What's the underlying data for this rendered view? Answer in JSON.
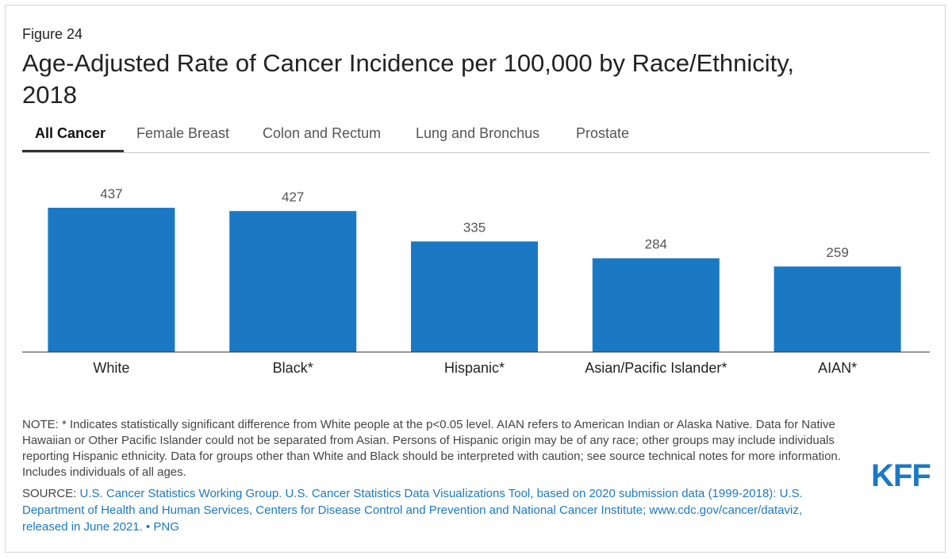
{
  "figure_label": "Figure 24",
  "title": "Age-Adjusted Rate of Cancer Incidence per 100,000 by Race/Ethnicity, 2018",
  "tabs": [
    {
      "label": "All Cancer",
      "active": true
    },
    {
      "label": "Female Breast",
      "active": false
    },
    {
      "label": "Colon and Rectum",
      "active": false
    },
    {
      "label": "Lung and Bronchus",
      "active": false
    },
    {
      "label": "Prostate",
      "active": false
    }
  ],
  "chart_data": {
    "type": "bar",
    "categories": [
      "White",
      "Black*",
      "Hispanic*",
      "Asian/Pacific Islander*",
      "AIAN*"
    ],
    "values": [
      437,
      427,
      335,
      284,
      259
    ],
    "bar_color": "#1b79c4",
    "data_labels": true,
    "grid": false,
    "ylim": [
      0,
      437
    ]
  },
  "note": "NOTE: * Indicates statistically significant difference from White people at the p<0.05 level. AIAN refers to American Indian or Alaska Native. Data for Native Hawaiian or Other Pacific Islander could not be separated from Asian. Persons of Hispanic origin may be of any race; other groups may include individuals reporting Hispanic ethnicity. Data for groups other than White and Black should be interpreted with caution; see source technical notes for more information. Includes individuals of all ages.",
  "source": {
    "prefix": "SOURCE: ",
    "text": "U.S. Cancer Statistics Working Group. U.S. Cancer Statistics Data Visualizations Tool, based on 2020 submission data (1999-2018): U.S. Department of Health and Human Services, Centers for Disease Control and Prevention and National Cancer Institute; www.cdc.gov/cancer/dataviz, released in June 2021.",
    "separator": " • ",
    "png_link": "PNG"
  },
  "logo_text": "KFF"
}
